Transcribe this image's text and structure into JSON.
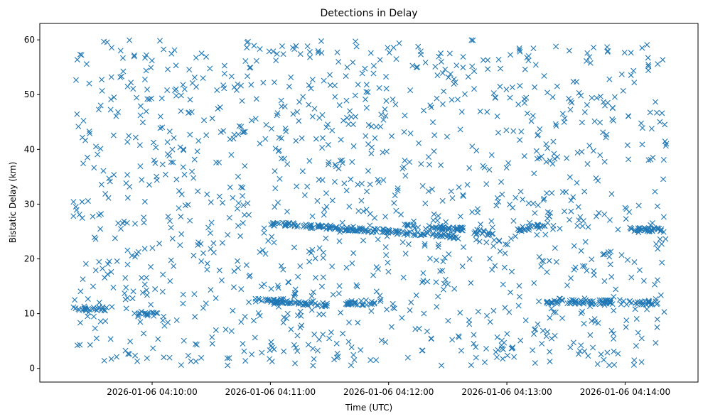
{
  "chart_data": {
    "type": "scatter",
    "title": "Detections in Delay",
    "xlabel": "Time (UTC)",
    "ylabel": "Bistatic Delay (km)",
    "marker": "x",
    "color": "#1f77b4",
    "grid": false,
    "legend": "none",
    "ylim": [
      -2.5,
      63
    ],
    "xlim": [
      "2026-01-06 04:09:03",
      "2026-01-06 04:14:37"
    ],
    "data_start": "2026-01-06 04:09:20",
    "data_end": "2026-01-06 04:14:21",
    "xticks": [
      "2026-01-06 04:10:00",
      "2026-01-06 04:11:00",
      "2026-01-06 04:12:00",
      "2026-01-06 04:13:00",
      "2026-01-06 04:14:00"
    ],
    "yticks": [
      0,
      10,
      20,
      30,
      40,
      50,
      60
    ],
    "tracks": [
      {
        "start": "2026-01-06 04:09:20",
        "end": "2026-01-06 04:09:37",
        "delay_start": 11.0,
        "delay_end": 10.8
      },
      {
        "start": "2026-01-06 04:09:53",
        "end": "2026-01-06 04:10:03",
        "delay_start": 10.0,
        "delay_end": 9.9
      },
      {
        "start": "2026-01-06 04:10:52",
        "end": "2026-01-06 04:11:07",
        "delay_start": 12.4,
        "delay_end": 12.3
      },
      {
        "start": "2026-01-06 04:11:03",
        "end": "2026-01-06 04:11:29",
        "delay_start": 12.4,
        "delay_end": 11.5
      },
      {
        "start": "2026-01-06 04:11:00",
        "end": "2026-01-06 04:12:38",
        "delay_start": 26.5,
        "delay_end": 24.0
      },
      {
        "start": "2026-01-06 04:11:38",
        "end": "2026-01-06 04:11:53",
        "delay_start": 11.9,
        "delay_end": 12.0
      },
      {
        "start": "2026-01-06 04:12:08",
        "end": "2026-01-06 04:12:38",
        "delay_start": 26.0,
        "delay_end": 25.5
      },
      {
        "start": "2026-01-06 04:12:43",
        "end": "2026-01-06 04:12:53",
        "delay_start": 25.0,
        "delay_end": 24.6
      },
      {
        "start": "2026-01-06 04:13:05",
        "end": "2026-01-06 04:13:20",
        "delay_start": 25.3,
        "delay_end": 26.2
      },
      {
        "start": "2026-01-06 04:13:20",
        "end": "2026-01-06 04:14:18",
        "delay_start": 12.2,
        "delay_end": 12.0
      },
      {
        "start": "2026-01-06 04:14:00",
        "end": "2026-01-06 04:14:20",
        "delay_start": 25.5,
        "delay_end": 25.3
      }
    ],
    "noise_delay_range": [
      0.5,
      60
    ],
    "noise_density": "uniform, about 1250 detections"
  }
}
